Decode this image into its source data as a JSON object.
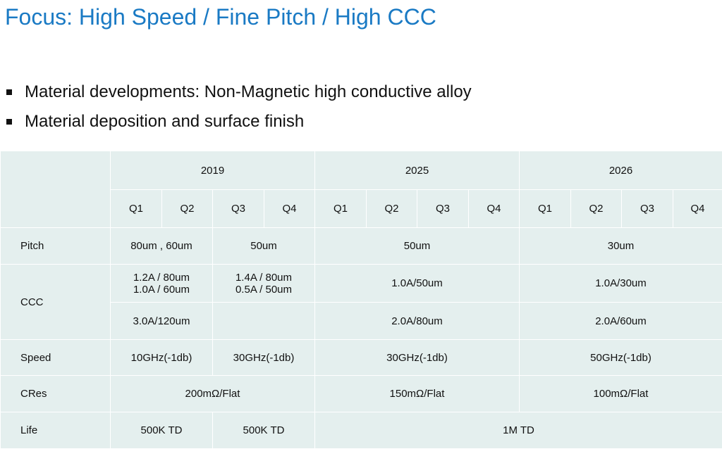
{
  "title": "Focus: High Speed / Fine Pitch / High CCC",
  "bullets": [
    "Material developments: Non-Magnetic high conductive alloy",
    "Material deposition and surface finish"
  ],
  "table": {
    "years": [
      "2019",
      "2025",
      "2026"
    ],
    "quarters": [
      "Q1",
      "Q2",
      "Q3",
      "Q4",
      "Q1",
      "Q2",
      "Q3",
      "Q4",
      "Q1",
      "Q2",
      "Q3",
      "Q4"
    ],
    "rows": {
      "pitch": {
        "label": "Pitch",
        "cells": [
          "80um , 60um",
          "50um",
          "50um",
          "30um"
        ]
      },
      "ccc": {
        "label": "CCC",
        "row1": [
          [
            "1.2A / 80um",
            "1.0A / 60um"
          ],
          [
            "1.4A / 80um",
            "0.5A / 50um"
          ],
          "1.0A/50um",
          "1.0A/30um"
        ],
        "row2": [
          "3.0A/120um",
          "",
          "2.0A/80um",
          "2.0A/60um"
        ]
      },
      "speed": {
        "label": "Speed",
        "cells": [
          "10GHz(-1db)",
          "30GHz(-1db)",
          "30GHz(-1db)",
          "50GHz(-1db)"
        ]
      },
      "cres": {
        "label": "CRes",
        "cells": [
          "200mΩ/Flat",
          "150mΩ/Flat",
          "100mΩ/Flat"
        ]
      },
      "life": {
        "label": "Life",
        "cells": [
          "500K TD",
          "500K TD",
          "1M TD"
        ]
      }
    }
  }
}
